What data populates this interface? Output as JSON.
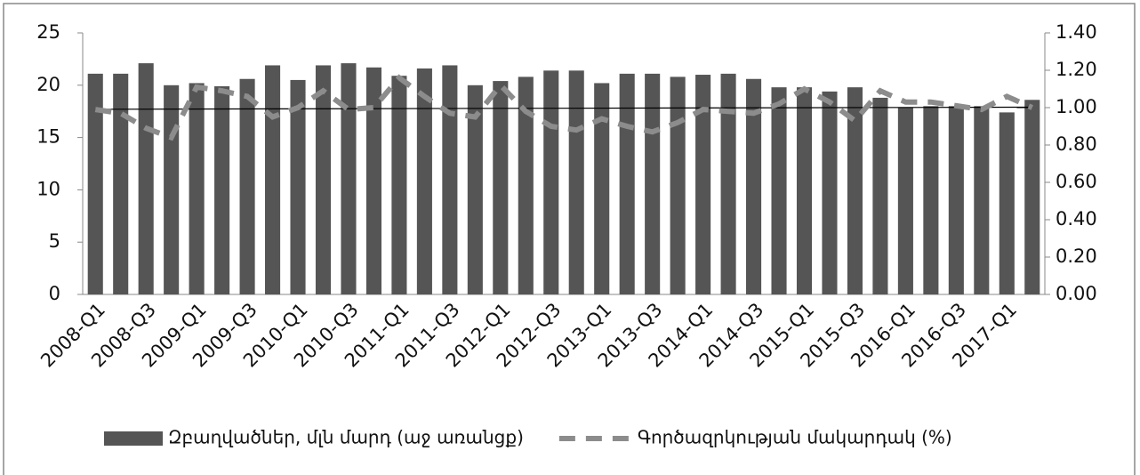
{
  "chart_data": {
    "type": "bar_line",
    "categories": [
      "2008-Q1",
      null,
      "2008-Q3",
      null,
      "2009-Q1",
      null,
      "2009-Q3",
      null,
      "2010-Q1",
      null,
      "2010-Q3",
      null,
      "2011-Q1",
      null,
      "2011-Q3",
      null,
      "2012-Q1",
      null,
      "2012-Q3",
      null,
      "2013-Q1",
      null,
      "2013-Q3",
      null,
      "2014-Q1",
      null,
      "2014-Q3",
      null,
      "2015-Q1",
      null,
      "2015-Q3",
      null,
      "2016-Q1",
      null,
      "2016-Q3",
      null,
      "2017-Q1",
      null
    ],
    "series": [
      {
        "name": "Զբաղվածներ, մլն մարդ (աջ առանցք)",
        "type": "bar",
        "color": "#555555",
        "values": [
          21.1,
          21.1,
          22.1,
          20.0,
          20.2,
          19.9,
          20.6,
          21.9,
          20.5,
          21.9,
          22.1,
          21.7,
          20.9,
          21.6,
          21.9,
          20.0,
          20.4,
          20.8,
          21.4,
          21.4,
          20.2,
          21.1,
          21.1,
          20.8,
          21.0,
          21.1,
          20.6,
          19.8,
          19.8,
          19.4,
          19.8,
          18.8,
          17.9,
          18.0,
          18.0,
          18.0,
          17.4,
          18.6
        ]
      },
      {
        "name": "Գործազրկության մակարդակ (%)",
        "type": "line",
        "axis": "y2",
        "color": "#8c8c8c",
        "dashed": true,
        "values": [
          0.99,
          0.97,
          0.89,
          0.84,
          1.11,
          1.09,
          1.06,
          0.95,
          1.0,
          1.09,
          0.99,
          1.0,
          1.16,
          1.06,
          0.97,
          0.95,
          1.12,
          0.98,
          0.9,
          0.88,
          0.94,
          0.9,
          0.87,
          0.92,
          0.99,
          0.98,
          0.97,
          1.02,
          1.1,
          1.03,
          0.93,
          1.09,
          1.03,
          1.03,
          1.01,
          0.99,
          1.06,
          1.0
        ]
      }
    ],
    "trendline": [
      17.7,
      17.9
    ],
    "ylim": [
      0,
      25
    ],
    "yticks": [
      0,
      5,
      10,
      15,
      20,
      25
    ],
    "y2lim": [
      0,
      1.4
    ],
    "y2ticks": [
      {
        "value": 0,
        "label": "0.00"
      },
      {
        "value": 0.2,
        "label": "0.20"
      },
      {
        "value": 0.4,
        "label": "0.40"
      },
      {
        "value": 0.6,
        "label": "0.60"
      },
      {
        "value": 0.8,
        "label": "0.80"
      },
      {
        "value": 1,
        "label": "1.00"
      },
      {
        "value": 1.2,
        "label": "1.20"
      },
      {
        "value": 1.4,
        "label": "1.40"
      }
    ],
    "legend": "bottom"
  }
}
